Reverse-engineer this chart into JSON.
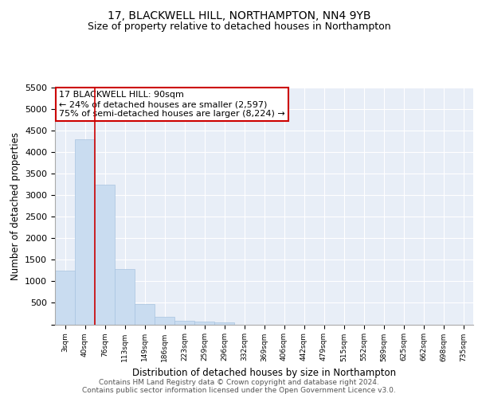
{
  "title1": "17, BLACKWELL HILL, NORTHAMPTON, NN4 9YB",
  "title2": "Size of property relative to detached houses in Northampton",
  "xlabel": "Distribution of detached houses by size in Northampton",
  "ylabel": "Number of detached properties",
  "categories": [
    "3sqm",
    "40sqm",
    "76sqm",
    "113sqm",
    "149sqm",
    "186sqm",
    "223sqm",
    "259sqm",
    "296sqm",
    "332sqm",
    "369sqm",
    "406sqm",
    "442sqm",
    "479sqm",
    "515sqm",
    "552sqm",
    "589sqm",
    "625sqm",
    "662sqm",
    "698sqm",
    "735sqm"
  ],
  "bar_heights": [
    1250,
    4300,
    3250,
    1280,
    480,
    175,
    90,
    60,
    40,
    0,
    0,
    0,
    0,
    0,
    0,
    0,
    0,
    0,
    0,
    0,
    0
  ],
  "bar_color": "#c9dcf0",
  "bar_edgecolor": "#a8c4e0",
  "red_line_x": 1.5,
  "annotation_line1": "17 BLACKWELL HILL: 90sqm",
  "annotation_line2": "← 24% of detached houses are smaller (2,597)",
  "annotation_line3": "75% of semi-detached houses are larger (8,224) →",
  "annotation_box_facecolor": "#ffffff",
  "annotation_box_edgecolor": "#cc0000",
  "ylim": [
    0,
    5500
  ],
  "yticks": [
    0,
    500,
    1000,
    1500,
    2000,
    2500,
    3000,
    3500,
    4000,
    4500,
    5000,
    5500
  ],
  "background_color": "#e8eef7",
  "grid_color": "#ffffff",
  "title1_fontsize": 10,
  "title2_fontsize": 9,
  "footer1": "Contains HM Land Registry data © Crown copyright and database right 2024.",
  "footer2": "Contains public sector information licensed under the Open Government Licence v3.0."
}
